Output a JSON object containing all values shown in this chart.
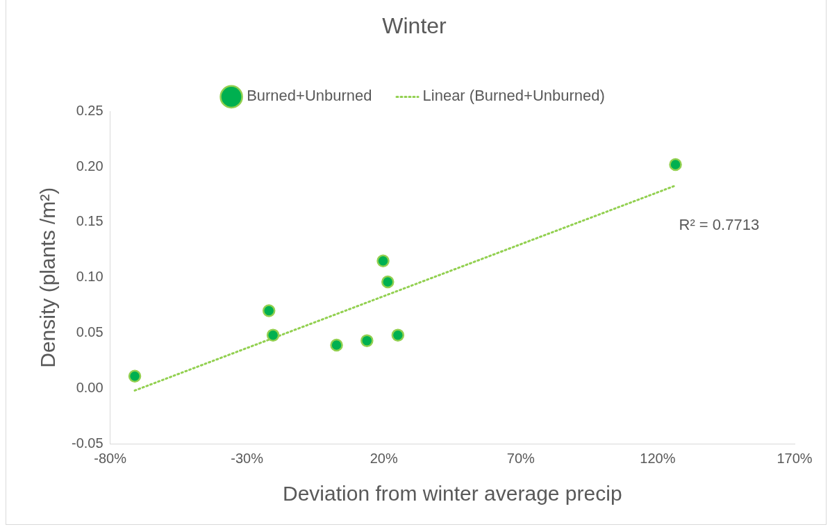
{
  "chart_data": {
    "type": "scatter",
    "title": "Winter",
    "xlabel": "Deviation from winter average precip",
    "ylabel": "Density (plants /m²)",
    "series": [
      {
        "name": "Burned+Unburned",
        "marker": "circle",
        "color": "#00b050",
        "x": [
          -71,
          -22,
          -20.5,
          2.7,
          13.8,
          19.7,
          21.4,
          25.1,
          126.5
        ],
        "values": [
          0.011,
          0.07,
          0.048,
          0.039,
          0.043,
          0.115,
          0.096,
          0.048,
          0.202
        ]
      },
      {
        "name": "Linear (Burned+Unburned)",
        "type": "line",
        "color": "#92d050",
        "line_style": "dotted",
        "x": [
          -71,
          126.5
        ],
        "values": [
          -0.002,
          0.183
        ]
      }
    ],
    "xlim": [
      -80,
      170
    ],
    "xticks": [
      {
        "value": -80,
        "label": "-80%"
      },
      {
        "value": -30,
        "label": "-30%"
      },
      {
        "value": 20,
        "label": "20%"
      },
      {
        "value": 70,
        "label": "70%"
      },
      {
        "value": 120,
        "label": "120%"
      },
      {
        "value": 170,
        "label": "170%"
      }
    ],
    "ylim": [
      -0.05,
      0.25
    ],
    "yticks": [
      {
        "value": -0.05,
        "label": "-0.05"
      },
      {
        "value": 0,
        "label": "0.00"
      },
      {
        "value": 0.05,
        "label": "0.05"
      },
      {
        "value": 0.1,
        "label": "0.10"
      },
      {
        "value": 0.15,
        "label": "0.15"
      },
      {
        "value": 0.2,
        "label": "0.20"
      },
      {
        "value": 0.25,
        "label": "0.25"
      }
    ],
    "annotations": [
      {
        "text": "R² = 0.7713",
        "x": 126.5,
        "y": 0.183
      }
    ],
    "legend": "top",
    "grid": false
  }
}
